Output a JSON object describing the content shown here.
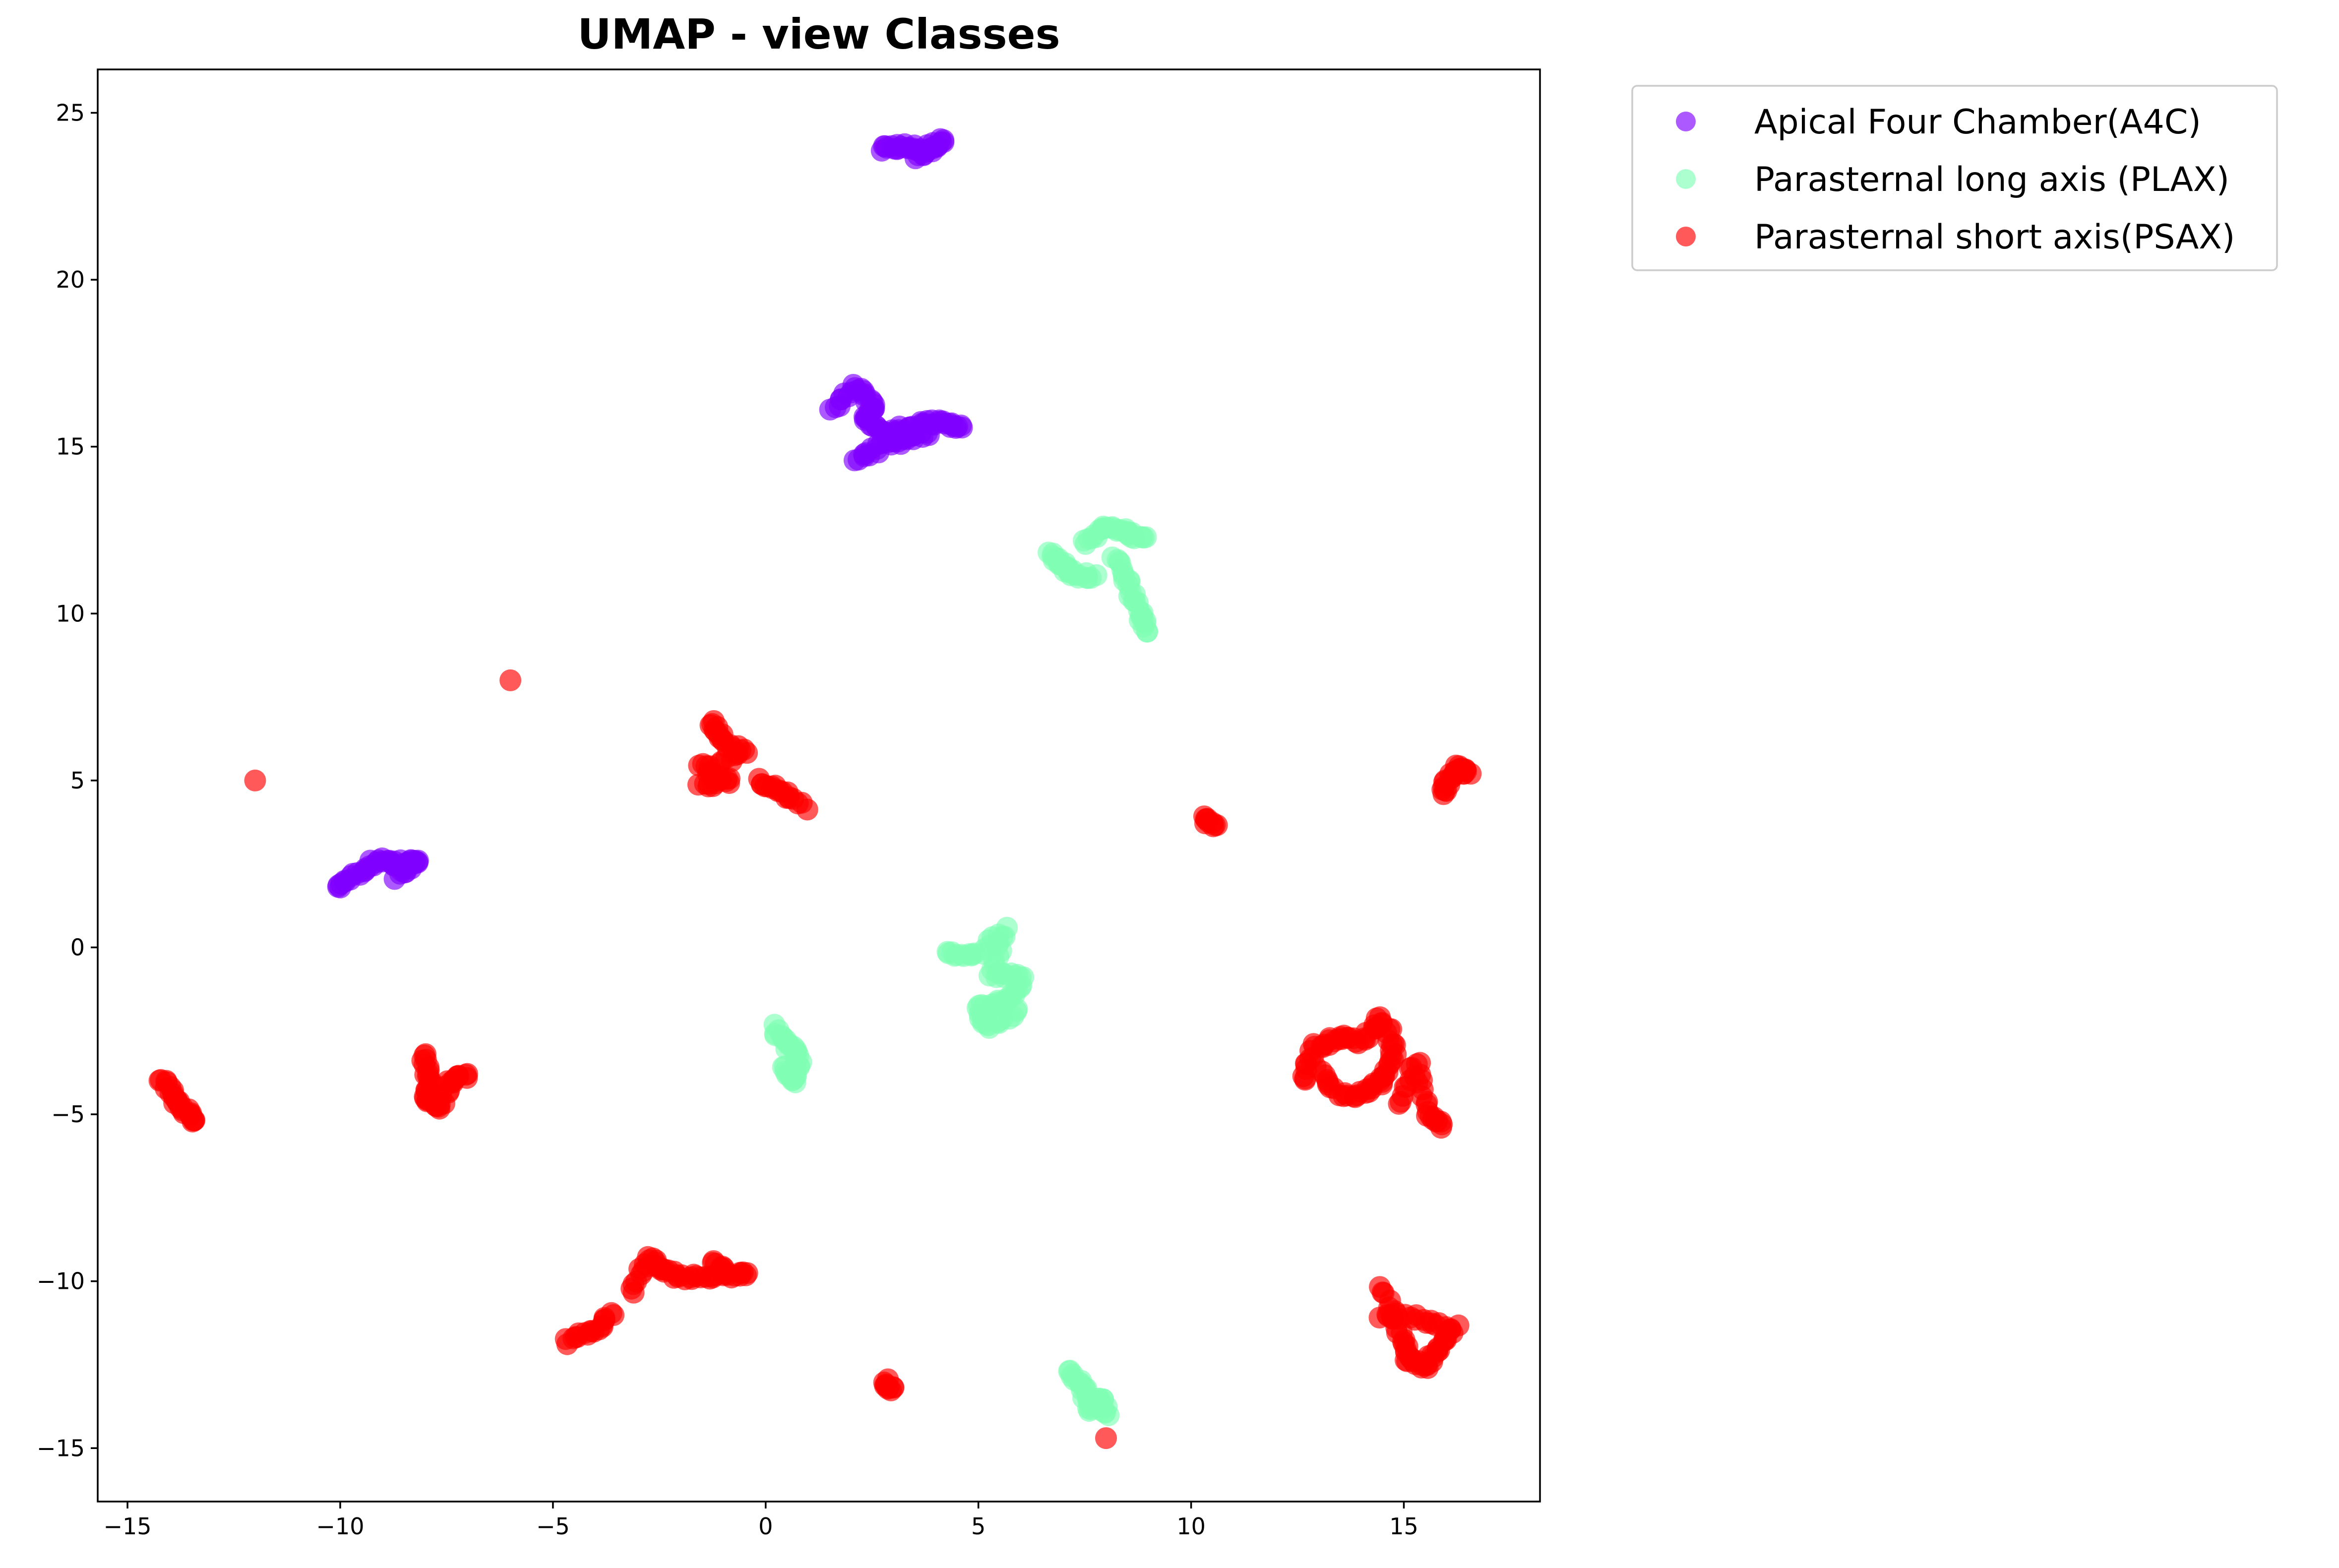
{
  "chart_data": {
    "type": "scatter",
    "title": "UMAP - view Classes",
    "xlabel": "",
    "ylabel": "",
    "xlim": [
      -15.7,
      18.2
    ],
    "ylim": [
      -16.6,
      26.3
    ],
    "xticks": [
      -15,
      -10,
      -5,
      0,
      5,
      10,
      15
    ],
    "yticks": [
      -15,
      -10,
      -5,
      0,
      5,
      10,
      15,
      20,
      25
    ],
    "grid": false,
    "legend_position": "outside-top-right",
    "series": [
      {
        "name": "Apical Four Chamber(A4C)",
        "color": "#8000ff",
        "segments": [
          [
            [
              2.7,
              23.9
            ],
            [
              3.2,
              24.0
            ],
            [
              3.7,
              23.9
            ],
            [
              4.2,
              24.2
            ],
            [
              3.5,
              23.6
            ]
          ],
          [
            [
              1.6,
              16.1
            ],
            [
              2.1,
              16.8
            ],
            [
              2.6,
              16.2
            ],
            [
              2.3,
              15.8
            ],
            [
              2.9,
              15.4
            ],
            [
              3.6,
              15.7
            ],
            [
              4.2,
              15.7
            ],
            [
              4.6,
              15.6
            ]
          ],
          [
            [
              2.1,
              14.6
            ],
            [
              2.7,
              15.0
            ],
            [
              3.3,
              15.2
            ],
            [
              3.8,
              15.4
            ]
          ],
          [
            [
              -10.1,
              1.8
            ],
            [
              -9.6,
              2.2
            ],
            [
              -9.1,
              2.6
            ],
            [
              -8.6,
              2.5
            ],
            [
              -8.2,
              2.6
            ],
            [
              -8.7,
              2.1
            ]
          ]
        ]
      },
      {
        "name": "Parasternal long axis (PLAX)",
        "color": "#80ffb4",
        "segments": [
          [
            [
              6.7,
              11.8
            ],
            [
              7.0,
              11.5
            ],
            [
              7.2,
              11.2
            ],
            [
              7.7,
              11.1
            ]
          ],
          [
            [
              7.5,
              12.1
            ],
            [
              8.0,
              12.6
            ],
            [
              8.5,
              12.4
            ],
            [
              8.9,
              12.3
            ]
          ],
          [
            [
              8.2,
              11.7
            ],
            [
              8.5,
              10.9
            ],
            [
              8.8,
              10.1
            ],
            [
              9.0,
              9.4
            ]
          ],
          [
            [
              4.2,
              -0.1
            ],
            [
              4.9,
              -0.3
            ],
            [
              5.6,
              0.5
            ],
            [
              5.3,
              -0.8
            ],
            [
              6.0,
              -0.9
            ],
            [
              5.7,
              -1.6
            ],
            [
              5.0,
              -1.8
            ],
            [
              5.2,
              -2.4
            ],
            [
              5.9,
              -1.9
            ]
          ],
          [
            [
              0.2,
              -2.4
            ],
            [
              0.5,
              -2.9
            ],
            [
              0.8,
              -3.4
            ],
            [
              0.7,
              -4.0
            ],
            [
              0.4,
              -3.6
            ]
          ],
          [
            [
              7.2,
              -12.7
            ],
            [
              7.5,
              -13.2
            ],
            [
              7.6,
              -13.8
            ],
            [
              7.9,
              -13.5
            ],
            [
              8.0,
              -14.0
            ]
          ]
        ]
      },
      {
        "name": "Parasternal short axis(PSAX)",
        "color": "#ff0000",
        "segments": [
          [
            [
              -6.0,
              8.0
            ]
          ],
          [
            [
              -12.0,
              5.0
            ]
          ],
          [
            [
              -1.3,
              6.8
            ],
            [
              -1.0,
              6.2
            ],
            [
              -0.5,
              5.8
            ],
            [
              -1.5,
              5.4
            ],
            [
              -0.8,
              5.0
            ],
            [
              -1.6,
              4.8
            ]
          ],
          [
            [
              -0.2,
              5.0
            ],
            [
              0.3,
              4.7
            ],
            [
              0.9,
              4.2
            ]
          ],
          [
            [
              10.3,
              3.9
            ],
            [
              10.6,
              3.6
            ]
          ],
          [
            [
              15.9,
              4.6
            ],
            [
              16.1,
              5.1
            ],
            [
              16.3,
              5.4
            ],
            [
              16.5,
              5.2
            ]
          ],
          [
            [
              -14.2,
              -3.9
            ],
            [
              -13.9,
              -4.5
            ],
            [
              -13.6,
              -4.9
            ],
            [
              -13.4,
              -5.2
            ]
          ],
          [
            [
              -8.1,
              -3.2
            ],
            [
              -7.9,
              -3.9
            ],
            [
              -8.0,
              -4.5
            ],
            [
              -7.7,
              -4.8
            ],
            [
              -7.4,
              -4.0
            ],
            [
              -7.0,
              -3.8
            ]
          ],
          [
            [
              12.6,
              -4.0
            ],
            [
              12.9,
              -3.0
            ],
            [
              13.4,
              -2.7
            ],
            [
              14.0,
              -2.8
            ],
            [
              14.5,
              -2.1
            ],
            [
              14.8,
              -3.0
            ],
            [
              14.6,
              -3.8
            ],
            [
              14.2,
              -4.3
            ],
            [
              13.5,
              -4.5
            ],
            [
              13.0,
              -3.6
            ]
          ],
          [
            [
              14.9,
              -4.7
            ],
            [
              15.3,
              -3.4
            ],
            [
              15.5,
              -4.9
            ],
            [
              15.9,
              -5.4
            ]
          ],
          [
            [
              -4.7,
              -11.8
            ],
            [
              -4.1,
              -11.5
            ],
            [
              -3.6,
              -11.0
            ]
          ],
          [
            [
              -3.1,
              -10.3
            ],
            [
              -2.8,
              -9.3
            ],
            [
              -2.4,
              -9.7
            ],
            [
              -1.8,
              -9.9
            ],
            [
              -1.2,
              -9.8
            ]
          ],
          [
            [
              -1.2,
              -9.4
            ],
            [
              -0.9,
              -9.8
            ],
            [
              -0.4,
              -9.8
            ]
          ],
          [
            [
              14.5,
              -10.1
            ],
            [
              14.9,
              -11.5
            ],
            [
              15.1,
              -12.3
            ],
            [
              15.5,
              -12.6
            ],
            [
              15.8,
              -12.0
            ],
            [
              16.2,
              -11.4
            ],
            [
              15.3,
              -11.1
            ],
            [
              14.5,
              -11.0
            ]
          ],
          [
            [
              2.8,
              -13.0
            ],
            [
              3.0,
              -13.3
            ]
          ],
          [
            [
              8.0,
              -14.7
            ]
          ]
        ]
      }
    ]
  }
}
